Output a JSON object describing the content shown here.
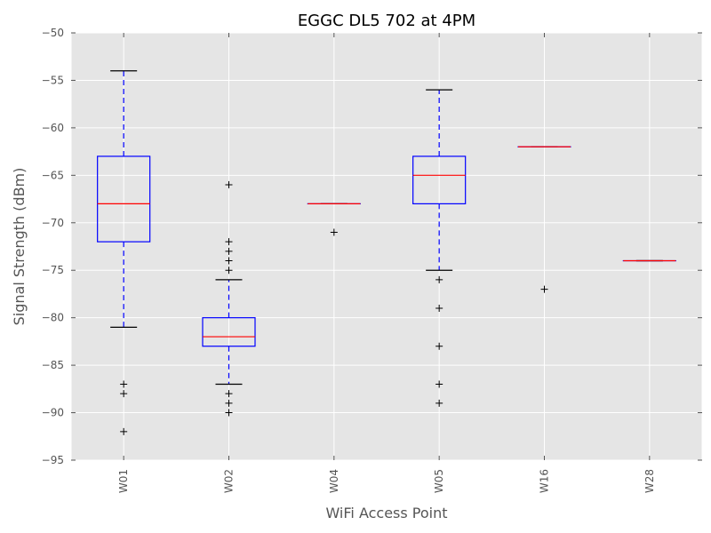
{
  "chart_data": {
    "type": "boxplot",
    "title": "EGGC DL5 702 at 4PM",
    "xlabel": "WiFi Access Point",
    "ylabel": "Signal Strength (dBm)",
    "ylim": [
      -95,
      -50
    ],
    "yticks": [
      -95,
      -90,
      -85,
      -80,
      -75,
      -70,
      -65,
      -60,
      -55,
      -50
    ],
    "grid": true,
    "categories": [
      "W01",
      "W02",
      "W04",
      "W05",
      "W16",
      "W28"
    ],
    "boxes": [
      {
        "category": "W01",
        "whisker_low": -81,
        "q1": -72,
        "median": -68,
        "q3": -63,
        "whisker_high": -54,
        "outliers": [
          -87,
          -88,
          -92
        ]
      },
      {
        "category": "W02",
        "whisker_low": -87,
        "q1": -83,
        "median": -82,
        "q3": -80,
        "whisker_high": -76,
        "outliers": [
          -66,
          -72,
          -73,
          -74,
          -75,
          -88,
          -89,
          -90
        ]
      },
      {
        "category": "W04",
        "whisker_low": -68,
        "q1": -68,
        "median": -68,
        "q3": -68,
        "whisker_high": -68,
        "outliers": [
          -71
        ]
      },
      {
        "category": "W05",
        "whisker_low": -75,
        "q1": -68,
        "median": -65,
        "q3": -63,
        "whisker_high": -56,
        "outliers": [
          -76,
          -79,
          -83,
          -87,
          -89
        ]
      },
      {
        "category": "W16",
        "whisker_low": -62,
        "q1": -62,
        "median": -62,
        "q3": -62,
        "whisker_high": -62,
        "outliers": [
          -77
        ]
      },
      {
        "category": "W28",
        "whisker_low": -74,
        "q1": -74,
        "median": -74,
        "q3": -74,
        "whisker_high": -74,
        "outliers": []
      }
    ],
    "colors": {
      "plot_background": "#e5e5e5",
      "grid": "#ffffff",
      "box": "#0000ff",
      "median": "#ff0000",
      "whisker": "#0000ff",
      "cap": "#000000",
      "flier": "#000000"
    }
  }
}
